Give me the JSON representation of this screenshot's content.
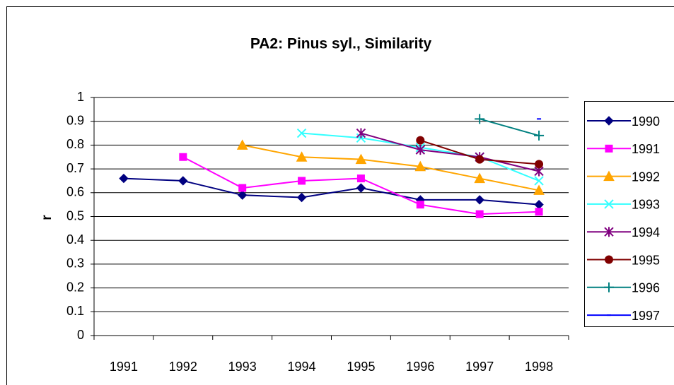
{
  "chart_data": {
    "type": "line",
    "title": "PA2: Pinus syl., Similarity",
    "y_label": "r",
    "categories": [
      "1991",
      "1992",
      "1993",
      "1994",
      "1995",
      "1996",
      "1997",
      "1998"
    ],
    "series": [
      {
        "name": "1990",
        "color": "#000080",
        "marker": "diamond",
        "values": [
          0.66,
          0.65,
          0.59,
          0.58,
          0.62,
          0.57,
          0.57,
          0.55
        ]
      },
      {
        "name": "1991",
        "color": "#FF00FF",
        "marker": "square",
        "values": [
          null,
          0.75,
          0.62,
          0.65,
          0.66,
          0.55,
          0.51,
          0.52
        ]
      },
      {
        "name": "1992",
        "color": "#FFA500",
        "marker": "triangle",
        "values": [
          null,
          null,
          0.8,
          0.75,
          0.74,
          0.71,
          0.66,
          0.61
        ]
      },
      {
        "name": "1993",
        "color": "#33FFFF",
        "marker": "x",
        "values": [
          null,
          null,
          null,
          0.85,
          0.83,
          0.79,
          0.75,
          0.65
        ]
      },
      {
        "name": "1994",
        "color": "#800080",
        "marker": "star",
        "values": [
          null,
          null,
          null,
          null,
          0.85,
          0.78,
          0.75,
          0.69
        ]
      },
      {
        "name": "1995",
        "color": "#800000",
        "marker": "circle",
        "values": [
          null,
          null,
          null,
          null,
          null,
          0.82,
          0.74,
          0.72
        ]
      },
      {
        "name": "1996",
        "color": "#008080",
        "marker": "plus",
        "values": [
          null,
          null,
          null,
          null,
          null,
          null,
          0.91,
          0.84
        ]
      },
      {
        "name": "1997",
        "color": "#0000FF",
        "marker": "dash",
        "values": [
          null,
          null,
          null,
          null,
          null,
          null,
          null,
          0.91
        ]
      }
    ],
    "ylim": [
      0,
      1
    ],
    "yticks": [
      0,
      0.1,
      0.2,
      0.3,
      0.4,
      0.5,
      0.6,
      0.7,
      0.8,
      0.9,
      1
    ],
    "grid": true,
    "legend": "right"
  }
}
